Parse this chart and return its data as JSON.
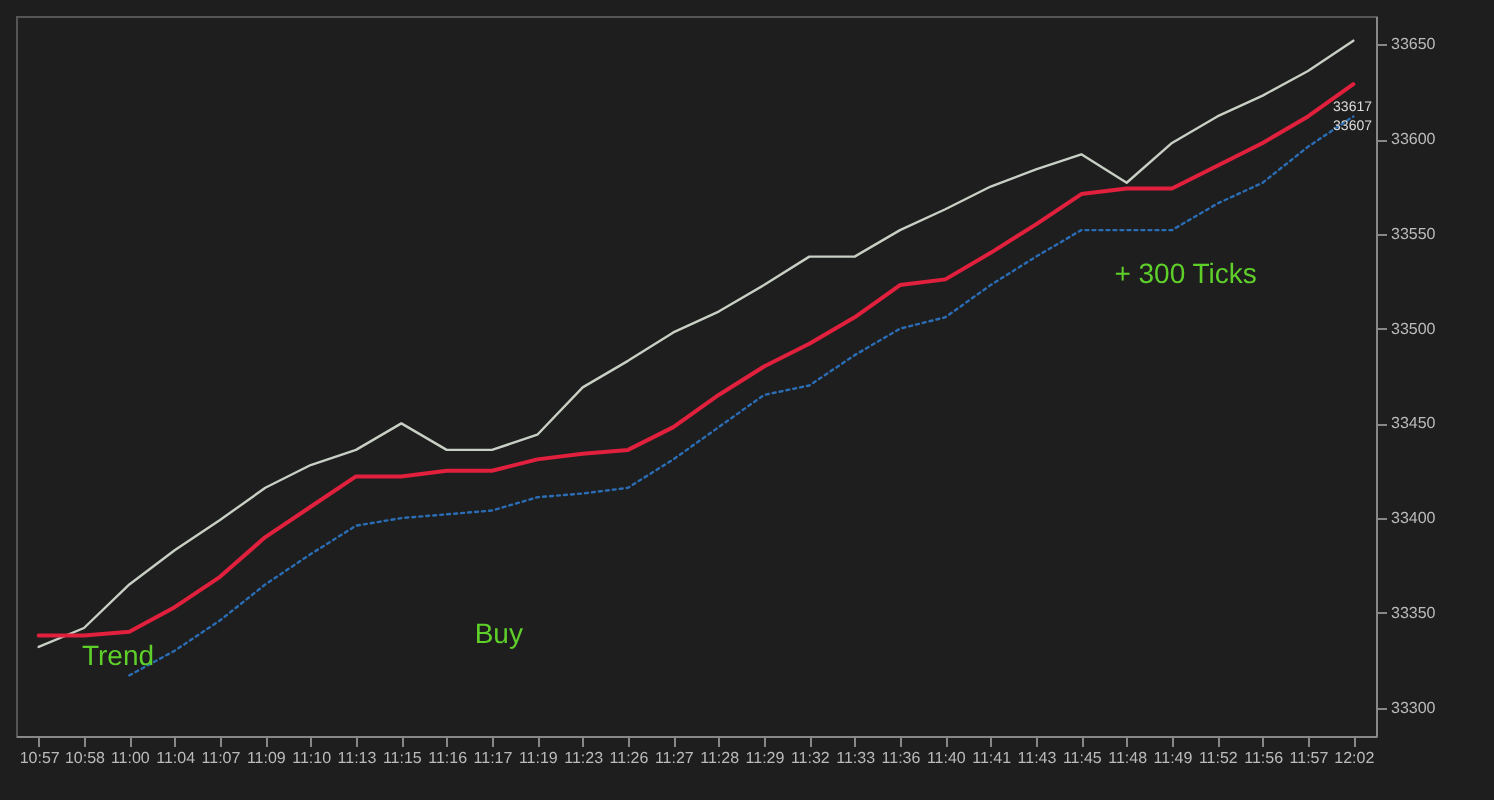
{
  "chart_data": {
    "type": "line",
    "categories": [
      "10:57",
      "10:58",
      "11:00",
      "11:04",
      "11:07",
      "11:09",
      "11:10",
      "11:13",
      "11:15",
      "11:16",
      "11:17",
      "11:19",
      "11:23",
      "11:26",
      "11:27",
      "11:28",
      "11:29",
      "11:32",
      "11:33",
      "11:36",
      "11:40",
      "11:41",
      "11:43",
      "11:45",
      "11:48",
      "11:49",
      "11:52",
      "11:56",
      "11:57",
      "12:02"
    ],
    "series": [
      {
        "color": "#c8cfc4",
        "values": [
          33332,
          33342,
          33365,
          33383,
          33399,
          33416,
          33428,
          33436,
          33450,
          33436,
          33436,
          33444,
          33469,
          33483,
          33498,
          33509,
          33523,
          33538,
          33538,
          33552,
          33563,
          33575,
          33584,
          33592,
          33577,
          33598,
          33612,
          33623,
          33636,
          33652
        ]
      },
      {
        "color": "#e0203c",
        "values": [
          33338,
          33338,
          33340,
          33353,
          33369,
          33390,
          33406,
          33422,
          33422,
          33425,
          33425,
          33431,
          33434,
          33436,
          33448,
          33465,
          33480,
          33492,
          33506,
          33523,
          33526,
          33540,
          33555,
          33571,
          33574,
          33574,
          33586,
          33598,
          33612,
          33629
        ]
      },
      {
        "color": "#2a6db5",
        "line_style": "dotted",
        "values": [
          null,
          null,
          33317,
          33330,
          33346,
          33365,
          33381,
          33396,
          33400,
          33402,
          33404,
          33411,
          33413,
          33416,
          33431,
          33448,
          33465,
          33470,
          33486,
          33500,
          33506,
          33523,
          33538,
          33552,
          33552,
          33552,
          33566,
          33577,
          33596,
          33612
        ]
      }
    ],
    "ylim": [
      33285,
      33665
    ],
    "yticks": [
      33300,
      33350,
      33400,
      33450,
      33500,
      33550,
      33600,
      33650
    ],
    "annotations": [
      "Trend",
      "Buy",
      "+ 300 Ticks",
      {
        "text": "33617",
        "y": 33617
      },
      {
        "text": "33607",
        "y": 33607
      }
    ],
    "grid": false,
    "marker": "none"
  }
}
